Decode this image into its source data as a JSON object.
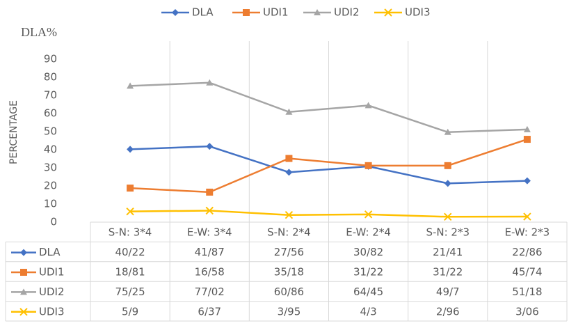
{
  "chart_data": {
    "type": "line",
    "title": "DLA%",
    "y_label": "PERCENTAGE",
    "categories": [
      "S-N: 3*4",
      "E-W: 3*4",
      "S-N: 2*4",
      "E-W: 2*4",
      "S-N: 2*3",
      "E-W: 2*3"
    ],
    "series": [
      {
        "name": "DLA",
        "color": "#4472c4",
        "marker": "diamond",
        "values": [
          40.22,
          41.87,
          27.56,
          30.82,
          21.41,
          22.86
        ],
        "value_labels": [
          "40/22",
          "41/87",
          "27/56",
          "30/82",
          "21/41",
          "22/86"
        ]
      },
      {
        "name": "UDI1",
        "color": "#ed7d31",
        "marker": "square",
        "values": [
          18.81,
          16.58,
          35.18,
          31.22,
          31.22,
          45.74
        ],
        "value_labels": [
          "18/81",
          "16/58",
          "35/18",
          "31/22",
          "31/22",
          "45/74"
        ]
      },
      {
        "name": "UDI2",
        "color": "#a5a5a5",
        "marker": "triangle",
        "values": [
          75.25,
          77.02,
          60.86,
          64.45,
          49.7,
          51.18
        ],
        "value_labels": [
          "75/25",
          "77/02",
          "60/86",
          "64/45",
          "49/7",
          "51/18"
        ]
      },
      {
        "name": "UDI3",
        "color": "#ffc000",
        "marker": "x",
        "values": [
          5.9,
          6.37,
          3.95,
          4.3,
          2.96,
          3.06
        ],
        "value_labels": [
          "5/9",
          "6/37",
          "3/95",
          "4/3",
          "2/96",
          "3/06"
        ]
      }
    ],
    "ylim": [
      0,
      100
    ],
    "yticks": [
      0,
      10,
      20,
      30,
      40,
      50,
      60,
      70,
      80,
      90
    ],
    "legend": "top"
  }
}
